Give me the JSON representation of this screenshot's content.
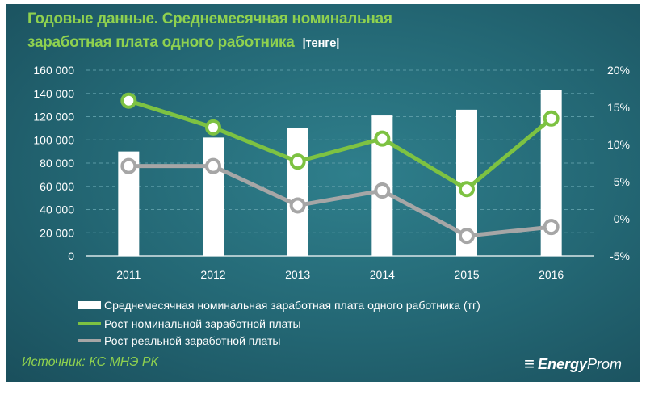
{
  "title_line1": "Годовые данные. Среднемесячная  номинальная",
  "title_line2": "заработная  плата одного работника",
  "title_unit": "|тенге|",
  "source": "Источник: КС МНЭ РК",
  "logo": {
    "bold": "Energy",
    "regular": "Prom"
  },
  "colors": {
    "background": "#236673",
    "bars": "#ffffff",
    "nominal": "#7dc242",
    "real": "#a6a6a6",
    "title": "#8fd14f"
  },
  "chart_data": {
    "type": "bar+line",
    "categories": [
      "2011",
      "2012",
      "2013",
      "2014",
      "2015",
      "2016"
    ],
    "left_axis": {
      "range": [
        0,
        160000
      ],
      "ticks": [
        "0",
        "20 000",
        "40 000",
        "60 000",
        "80 000",
        "100 000",
        "120 000",
        "140 000",
        "160 000"
      ]
    },
    "right_axis": {
      "range": [
        -5,
        20
      ],
      "ticks": [
        "-5%",
        "0%",
        "5%",
        "10%",
        "15%",
        "20%"
      ]
    },
    "grid": true,
    "legend_position": "bottom",
    "series": [
      {
        "name": "Среднемесячная номинальная заработная плата одного работника (тг)",
        "type": "bar",
        "axis": "left",
        "values": [
          90000,
          102000,
          110000,
          121000,
          126000,
          143000
        ]
      },
      {
        "name": "Рост номинальной заработной платы",
        "type": "line",
        "axis": "right",
        "values": [
          15.9,
          12.3,
          7.7,
          10.8,
          4.0,
          13.5
        ]
      },
      {
        "name": "Рост реальной заработной платы",
        "type": "line",
        "axis": "right",
        "values": [
          7.1,
          7.1,
          1.8,
          3.8,
          -2.3,
          -1.1
        ]
      }
    ]
  }
}
